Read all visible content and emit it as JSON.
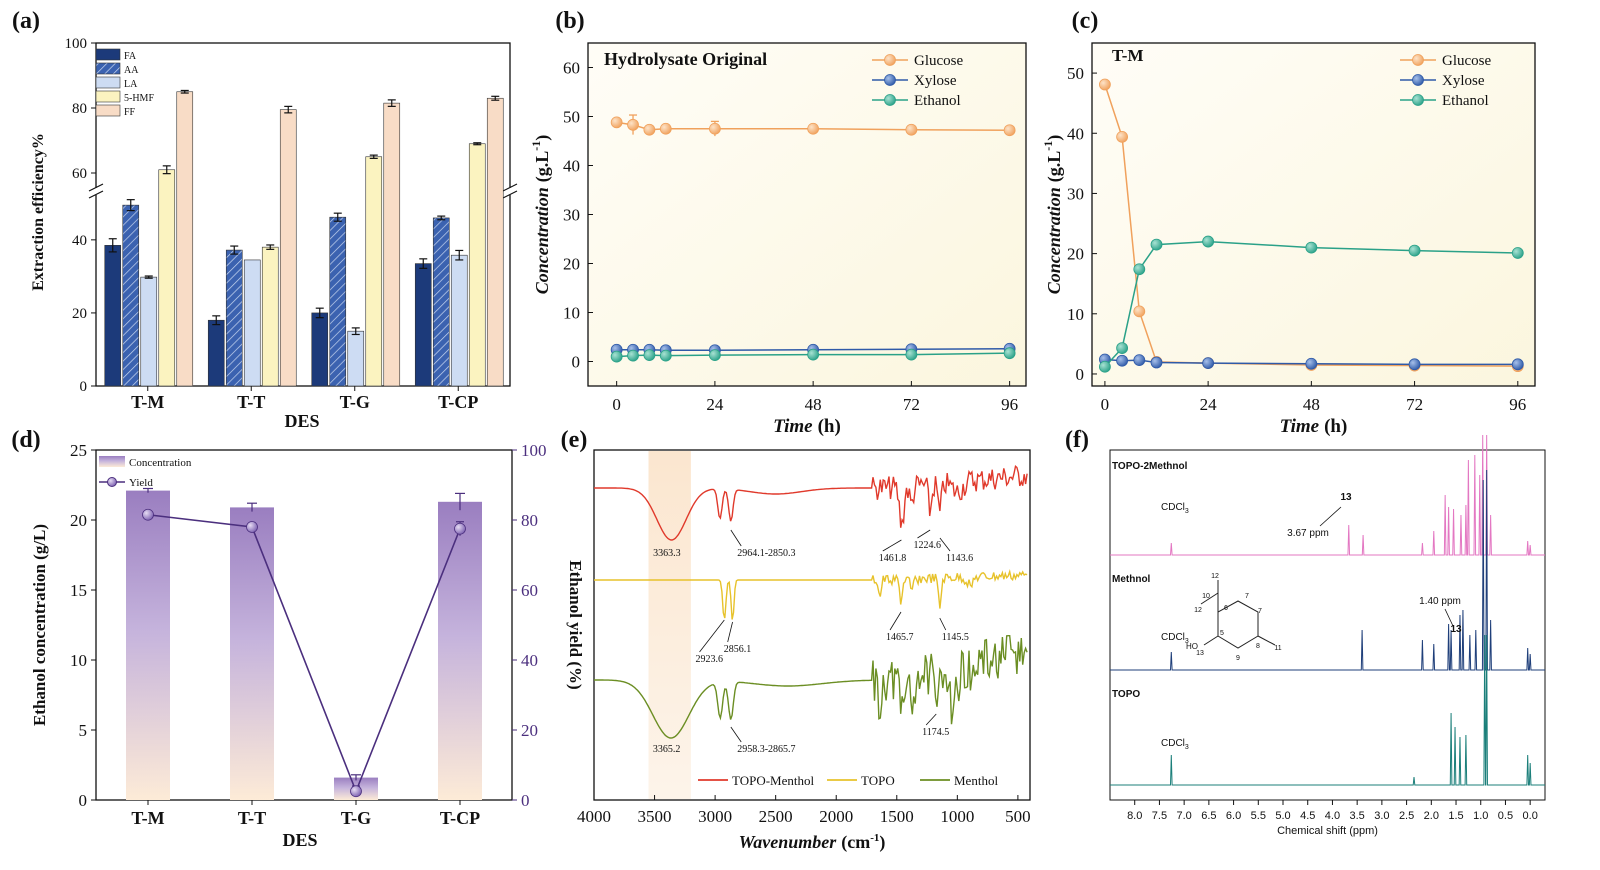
{
  "chart_data": [
    {
      "id": "a",
      "panel_label": "(a)",
      "type": "bar",
      "xlabel": "DES",
      "ylabel": "Extraction efficiency%",
      "categories": [
        "T-M",
        "T-T",
        "T-G",
        "T-CP"
      ],
      "axis_break": [
        52,
        56
      ],
      "ylim": [
        0,
        100
      ],
      "yticks": [
        0,
        20,
        40,
        60,
        80,
        100
      ],
      "series": [
        {
          "name": "FA",
          "color": "#1c3a7a",
          "values": [
            38.5,
            18,
            20,
            33.5
          ],
          "errors": [
            1.8,
            1.2,
            1.3,
            1.3
          ]
        },
        {
          "name": "AA",
          "color": "#3b62b0",
          "hatch": true,
          "values": [
            49.5,
            37.2,
            46.2,
            46
          ],
          "errors": [
            1.5,
            1.1,
            1.1,
            0.5
          ]
        },
        {
          "name": "LA",
          "color": "#cddcf3",
          "values": [
            29.8,
            34.5,
            15,
            35.8
          ],
          "errors": [
            0.3,
            0,
            0.9,
            1.3
          ]
        },
        {
          "name": "5-HMF",
          "color": "#fbf3c0",
          "values": [
            61,
            38,
            65,
            69
          ],
          "errors": [
            1.2,
            0.6,
            0.5,
            0.3
          ]
        },
        {
          "name": "FF",
          "color": "#f8dcc6",
          "values": [
            85,
            79.5,
            81.5,
            83
          ],
          "errors": [
            0.4,
            1.0,
            1.0,
            0.6
          ]
        }
      ]
    },
    {
      "id": "b",
      "panel_label": "(b)",
      "type": "line",
      "title": "Hydrolysate Original",
      "xlabel": "Time",
      "xunit": "(h)",
      "ylabel": "Concentration",
      "yunit": "(g.L",
      "yunit_sup": "-1",
      "yunit_close": ")",
      "xlim": [
        -7,
        100
      ],
      "ylim": [
        -5,
        65
      ],
      "xticks": [
        0,
        24,
        48,
        72,
        96
      ],
      "yticks": [
        0,
        10,
        20,
        30,
        40,
        50,
        60
      ],
      "x": [
        0,
        4,
        8,
        12,
        24,
        48,
        72,
        96
      ],
      "series": [
        {
          "name": "Glucose",
          "color": "#f0a15c",
          "values": [
            48.8,
            48.3,
            47.3,
            47.5,
            47.5,
            47.5,
            47.3,
            47.2
          ],
          "errors": [
            0.6,
            2,
            0.4,
            0.3,
            1.5,
            0.4,
            0.3,
            0.3
          ]
        },
        {
          "name": "Xylose",
          "color": "#2f5aa8",
          "values": [
            2.4,
            2.4,
            2.4,
            2.3,
            2.3,
            2.4,
            2.5,
            2.6
          ],
          "errors": [
            0,
            0,
            0,
            0,
            0,
            0,
            0,
            0
          ]
        },
        {
          "name": "Ethanol",
          "color": "#2aa188",
          "values": [
            1.0,
            1.2,
            1.3,
            1.2,
            1.3,
            1.4,
            1.4,
            1.7
          ],
          "errors": [
            0,
            0,
            0,
            0,
            0,
            0,
            0,
            0
          ]
        }
      ]
    },
    {
      "id": "c",
      "panel_label": "(c)",
      "type": "line",
      "title": "T-M",
      "xlabel": "Time",
      "xunit": "(h)",
      "ylabel": "Concentration",
      "yunit": "(g.L",
      "yunit_sup": "-1",
      "yunit_close": ")",
      "xlim": [
        -3,
        100
      ],
      "ylim": [
        -2,
        55
      ],
      "xticks": [
        0,
        24,
        48,
        72,
        96
      ],
      "yticks": [
        0,
        10,
        20,
        30,
        40,
        50
      ],
      "x": [
        0,
        4,
        8,
        12,
        24,
        48,
        72,
        96
      ],
      "series": [
        {
          "name": "Glucose",
          "color": "#f0a15c",
          "values": [
            48.1,
            39.4,
            10.4,
            2.0,
            1.8,
            1.5,
            1.4,
            1.3
          ],
          "errors": [
            0,
            0,
            0,
            0,
            0,
            0,
            0,
            0
          ]
        },
        {
          "name": "Xylose",
          "color": "#2f5aa8",
          "values": [
            2.4,
            2.2,
            2.3,
            1.9,
            1.8,
            1.7,
            1.6,
            1.6
          ],
          "errors": [
            0,
            0,
            0,
            0,
            0,
            0,
            0,
            0
          ]
        },
        {
          "name": "Ethanol",
          "color": "#2aa188",
          "values": [
            1.2,
            4.3,
            17.4,
            21.5,
            22.0,
            21.0,
            20.5,
            20.1
          ],
          "errors": [
            0,
            0,
            0,
            0,
            0,
            0,
            0,
            0
          ]
        }
      ]
    },
    {
      "id": "d",
      "panel_label": "(d)",
      "type": "bar",
      "xlabel": "DES",
      "ylabel": "Ethanol concentration (g/L)",
      "y2label": "Ethanol yield (%)",
      "categories": [
        "T-M",
        "T-T",
        "T-G",
        "T-CP"
      ],
      "ylim": [
        0,
        25
      ],
      "yticks": [
        0,
        5,
        10,
        15,
        20,
        25
      ],
      "y2lim": [
        0,
        100
      ],
      "y2ticks": [
        0,
        20,
        40,
        60,
        80,
        100
      ],
      "series": [
        {
          "name": "Concentration",
          "color": "#9a7ec0",
          "values": [
            22.1,
            20.9,
            1.6,
            21.3
          ],
          "errors": [
            0.15,
            0.3,
            0.2,
            0.6
          ]
        },
        {
          "name": "Yield",
          "color": "#4b2f7e",
          "axis": "right",
          "values": [
            81.5,
            78,
            2.5,
            77.5
          ],
          "errors": [
            0,
            0,
            1.5,
            2
          ]
        }
      ]
    },
    {
      "id": "e",
      "panel_label": "(e)",
      "type": "line",
      "xlabel": "Wavenumber",
      "xunit": "(cm",
      "xunit_sup": "-1",
      "xunit_close": ")",
      "xlim": [
        4000,
        400
      ],
      "xticks": [
        4000,
        3500,
        3000,
        2500,
        2000,
        1500,
        1000,
        500
      ],
      "highlight_band": [
        3550,
        3200
      ],
      "series": [
        {
          "name": "TOPO-Menthol",
          "color": "#e0392b"
        },
        {
          "name": "TOPO",
          "color": "#e7c22b"
        },
        {
          "name": "Menthol",
          "color": "#6b8e23"
        }
      ],
      "annotations": [
        "3363.3",
        "2964.1-2850.3",
        "1461.8",
        "1224.6",
        "1143.6",
        "2923.6",
        "2856.1",
        "1465.7",
        "1145.5",
        "3365.2",
        "2958.3-2865.7",
        "1174.5"
      ]
    },
    {
      "id": "f",
      "panel_label": "(f)",
      "type": "line",
      "xlabel": "Chemical shift (ppm)",
      "xlim": [
        8.5,
        -0.3
      ],
      "xticks": [
        "8.0",
        "7.5",
        "7.0",
        "6.5",
        "6.0",
        "5.5",
        "5.0",
        "4.5",
        "4.0",
        "3.5",
        "3.0",
        "2.5",
        "2.0",
        "1.5",
        "1.0",
        "0.5",
        "0.0"
      ],
      "series": [
        {
          "name": "TOPO-2Methnol",
          "color": "#e377c2"
        },
        {
          "name": "Methnol",
          "color": "#1f3f7a"
        },
        {
          "name": "TOPO",
          "color": "#1b7f7a"
        }
      ],
      "annotations": [
        "13",
        "3.67 ppm",
        "1.40 ppm",
        "13",
        "CDCl",
        "CDCl",
        "CDCl"
      ],
      "subscript": "3",
      "structure_numbers": [
        "12",
        "10",
        "12",
        "6",
        "7",
        "7",
        "5",
        "8",
        "9",
        "11",
        "13"
      ],
      "structure_label_ho": "HO"
    }
  ]
}
